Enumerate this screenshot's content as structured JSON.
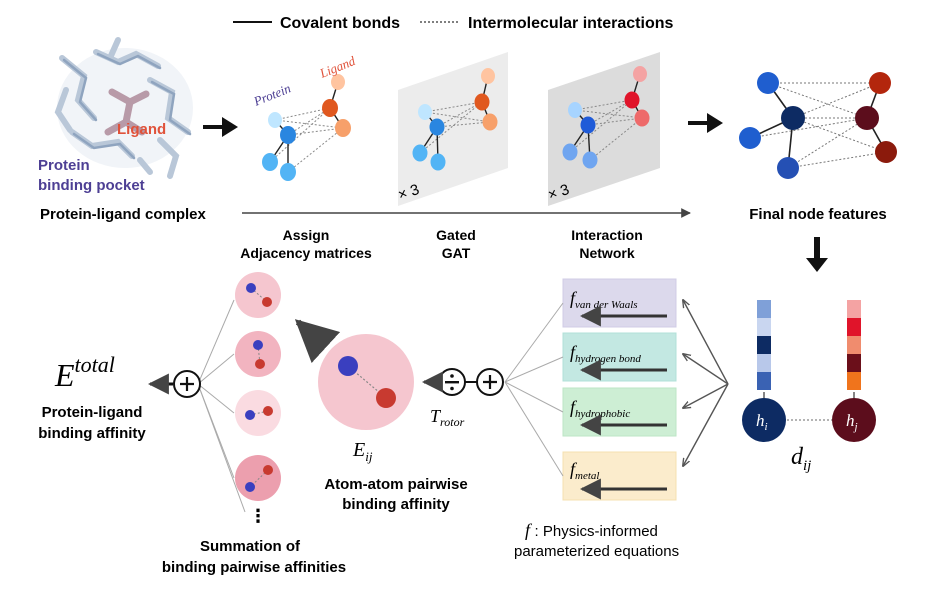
{
  "legend": {
    "covalent": "Covalent bonds",
    "intermolecular": "Intermolecular interactions"
  },
  "complex": {
    "ligand_label": "Ligand",
    "pocket_line1": "Protein",
    "pocket_line2": "binding pocket",
    "caption": "Protein-ligand complex"
  },
  "graph_labels": {
    "protein": "Protein",
    "ligand": "Ligand"
  },
  "repeats": {
    "gated": "× 3",
    "interaction": "× 3"
  },
  "stages": {
    "assign_line1": "Assign",
    "assign_line2": "Adjacency matrices",
    "gat_line1": "Gated",
    "gat_line2": "GAT",
    "inter_line1": "Interaction",
    "inter_line2": "Network"
  },
  "final_features": "Final node features",
  "equations": {
    "vdw": "van der Waals",
    "hbond": "hydrogen bond",
    "hydrophobic": "hydrophobic",
    "metal": "metal",
    "caption_line1": ": Physics-informed",
    "caption_line2": "parameterized equations"
  },
  "nodes": {
    "hi_sub": "i",
    "hj_sub": "j",
    "dij_sub": "ij"
  },
  "pairwise": {
    "e_sub": "ij",
    "line1": "Atom-atom pairwise",
    "line2": "binding affinity",
    "t_sub": "rotor"
  },
  "total": {
    "e_sup": "total",
    "line1": "Protein-ligand",
    "line2": "binding affinity"
  },
  "summation": {
    "dots": "⋮",
    "line1": "Summation of",
    "line2": "binding pairwise affinities"
  },
  "colors": {
    "protein_blue": "#3d7fd9",
    "ligand_red": "#e0523a",
    "dark_navy": "#0d2b63",
    "dark_maroon": "#5c0d1c",
    "pink_circle": "#f5c6cf"
  }
}
